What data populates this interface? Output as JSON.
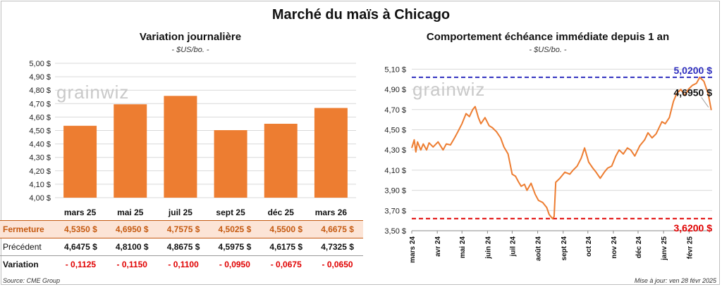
{
  "title": "Marché du maïs à Chicago",
  "watermark": "grainwiz",
  "left": {
    "title": "Variation journalière",
    "subtitle": "- $US/bo. -"
  },
  "right": {
    "title": "Comportement échéance immédiate depuis 1 an",
    "subtitle": "- $US/bo. -",
    "max_label": "5,0200 $",
    "min_label": "3,6200 $",
    "last_label": "4,6950 $"
  },
  "table": {
    "row_labels": {
      "close": "Fermeture",
      "prev": "Précédent",
      "var": "Variation"
    },
    "close": [
      "4,5350 $",
      "4,6950 $",
      "4,7575 $",
      "4,5025 $",
      "4,5500 $",
      "4,6675 $"
    ],
    "prev": [
      "4,6475 $",
      "4,8100 $",
      "4,8675 $",
      "4,5975 $",
      "4,6175 $",
      "4,7325 $"
    ],
    "var": [
      "- 0,1125",
      "- 0,1150",
      "- 0,1100",
      "- 0,0950",
      "- 0,0675",
      "- 0,0650"
    ]
  },
  "footer": {
    "source": "Source: CME Group",
    "updated": "Mise à jour: ven 28 févr 2025"
  },
  "chart_data": [
    {
      "type": "bar",
      "title": "Variation journalière",
      "subtitle": "- $US/bo. -",
      "categories": [
        "mars 25",
        "mai 25",
        "juil 25",
        "sept 25",
        "déc 25",
        "mars 26"
      ],
      "values": [
        4.535,
        4.695,
        4.7575,
        4.5025,
        4.55,
        4.6675
      ],
      "ylim": [
        4.0,
        5.0
      ],
      "yticks": [
        4.0,
        4.1,
        4.2,
        4.3,
        4.4,
        4.5,
        4.6,
        4.7,
        4.8,
        4.9,
        5.0
      ],
      "ytick_labels": [
        "4,00 $",
        "4,10 $",
        "4,20 $",
        "4,30 $",
        "4,40 $",
        "4,50 $",
        "4,60 $",
        "4,70 $",
        "4,80 $",
        "4,90 $",
        "5,00 $"
      ],
      "color": "#ed7d31",
      "grid": true
    },
    {
      "type": "line",
      "title": "Comportement échéance immédiate depuis 1 an",
      "subtitle": "- $US/bo. -",
      "x_start": "2024-03-01",
      "x_end": "2025-03-01",
      "xtick_labels": [
        "mars 24",
        "avr 24",
        "mai 24",
        "juin 24",
        "juil 24",
        "août 24",
        "sept 24",
        "oct 24",
        "nov 24",
        "déc 24",
        "janv 25",
        "févr 25"
      ],
      "ylim": [
        3.5,
        5.2
      ],
      "yticks": [
        3.5,
        3.7,
        3.9,
        4.1,
        4.3,
        4.5,
        4.7,
        4.9,
        5.1
      ],
      "ytick_labels": [
        "3,50 $",
        "3,70 $",
        "3,90 $",
        "4,10 $",
        "4,30 $",
        "4,50 $",
        "4,70 $",
        "4,90 $",
        "5,10 $"
      ],
      "color": "#ed7d31",
      "max_line": 5.02,
      "max_color": "#2f2fbf",
      "min_line": 3.62,
      "min_color": "#e00000",
      "last_value": 4.695,
      "points": [
        [
          "2024-03-01",
          4.32
        ],
        [
          "2024-03-04",
          4.4
        ],
        [
          "2024-03-06",
          4.28
        ],
        [
          "2024-03-08",
          4.38
        ],
        [
          "2024-03-12",
          4.3
        ],
        [
          "2024-03-15",
          4.36
        ],
        [
          "2024-03-19",
          4.3
        ],
        [
          "2024-03-22",
          4.37
        ],
        [
          "2024-03-27",
          4.33
        ],
        [
          "2024-04-02",
          4.38
        ],
        [
          "2024-04-08",
          4.3
        ],
        [
          "2024-04-12",
          4.36
        ],
        [
          "2024-04-17",
          4.35
        ],
        [
          "2024-04-22",
          4.42
        ],
        [
          "2024-04-26",
          4.48
        ],
        [
          "2024-05-01",
          4.56
        ],
        [
          "2024-05-06",
          4.66
        ],
        [
          "2024-05-10",
          4.63
        ],
        [
          "2024-05-14",
          4.7
        ],
        [
          "2024-05-17",
          4.73
        ],
        [
          "2024-05-21",
          4.62
        ],
        [
          "2024-05-24",
          4.56
        ],
        [
          "2024-05-29",
          4.62
        ],
        [
          "2024-06-03",
          4.54
        ],
        [
          "2024-06-07",
          4.52
        ],
        [
          "2024-06-12",
          4.48
        ],
        [
          "2024-06-17",
          4.42
        ],
        [
          "2024-06-21",
          4.33
        ],
        [
          "2024-06-26",
          4.26
        ],
        [
          "2024-07-01",
          4.06
        ],
        [
          "2024-07-05",
          4.04
        ],
        [
          "2024-07-09",
          3.98
        ],
        [
          "2024-07-12",
          3.94
        ],
        [
          "2024-07-16",
          3.96
        ],
        [
          "2024-07-19",
          3.9
        ],
        [
          "2024-07-24",
          3.97
        ],
        [
          "2024-07-29",
          3.86
        ],
        [
          "2024-08-02",
          3.8
        ],
        [
          "2024-08-07",
          3.78
        ],
        [
          "2024-08-12",
          3.73
        ],
        [
          "2024-08-15",
          3.66
        ],
        [
          "2024-08-19",
          3.62
        ],
        [
          "2024-08-21",
          3.64
        ],
        [
          "2024-08-23",
          3.98
        ],
        [
          "2024-08-28",
          4.02
        ],
        [
          "2024-09-03",
          4.08
        ],
        [
          "2024-09-09",
          4.06
        ],
        [
          "2024-09-13",
          4.1
        ],
        [
          "2024-09-18",
          4.14
        ],
        [
          "2024-09-23",
          4.22
        ],
        [
          "2024-09-27",
          4.32
        ],
        [
          "2024-10-02",
          4.18
        ],
        [
          "2024-10-07",
          4.12
        ],
        [
          "2024-10-11",
          4.08
        ],
        [
          "2024-10-16",
          4.02
        ],
        [
          "2024-10-21",
          4.08
        ],
        [
          "2024-10-25",
          4.12
        ],
        [
          "2024-10-30",
          4.14
        ],
        [
          "2024-11-04",
          4.24
        ],
        [
          "2024-11-08",
          4.3
        ],
        [
          "2024-11-13",
          4.26
        ],
        [
          "2024-11-18",
          4.32
        ],
        [
          "2024-11-22",
          4.3
        ],
        [
          "2024-11-27",
          4.24
        ],
        [
          "2024-12-03",
          4.34
        ],
        [
          "2024-12-09",
          4.4
        ],
        [
          "2024-12-13",
          4.47
        ],
        [
          "2024-12-18",
          4.42
        ],
        [
          "2024-12-23",
          4.46
        ],
        [
          "2024-12-30",
          4.58
        ],
        [
          "2025-01-03",
          4.56
        ],
        [
          "2025-01-08",
          4.62
        ],
        [
          "2025-01-13",
          4.78
        ],
        [
          "2025-01-17",
          4.86
        ],
        [
          "2025-01-22",
          4.9
        ],
        [
          "2025-01-27",
          4.84
        ],
        [
          "2025-01-31",
          4.9
        ],
        [
          "2025-02-05",
          4.94
        ],
        [
          "2025-02-10",
          4.96
        ],
        [
          "2025-02-14",
          5.02
        ],
        [
          "2025-02-19",
          4.98
        ],
        [
          "2025-02-24",
          4.86
        ],
        [
          "2025-02-26",
          4.78
        ],
        [
          "2025-02-28",
          4.695
        ]
      ]
    }
  ]
}
